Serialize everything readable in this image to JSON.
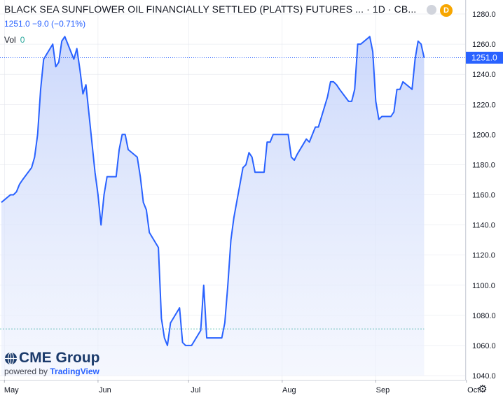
{
  "header": {
    "title": "BLACK SEA SUNFLOWER OIL FINANCIALLY SETTLED (PLATTS) FUTURES ... · 1D · CB...",
    "price_line": "1251.0  −9.0  (−0.71%)",
    "vol_label": "Vol",
    "vol_value": "0",
    "badge_letter": "D"
  },
  "branding": {
    "logo_text": "CME Group",
    "powered_by": "powered by",
    "tradingview": "TradingView"
  },
  "colors": {
    "line": "#2962ff",
    "fill_top": "#c6d4fb",
    "fill_bottom": "#eef2fd",
    "last_price_bg": "#2962ff",
    "grid": "#e0e3eb"
  },
  "icons": [
    "settings-gear-icon",
    "cme-globe-icon"
  ],
  "chart_data": {
    "type": "area",
    "x_axis_labels": [
      "May",
      "Jun",
      "Jul",
      "Aug",
      "Sep",
      "Oct"
    ],
    "y_axis_labels": [
      "1280.0",
      "1260.0",
      "1240.0",
      "1220.0",
      "1200.0",
      "1180.0",
      "1160.0",
      "1140.0",
      "1120.0",
      "1100.0",
      "1080.0",
      "1060.0",
      "1040.0"
    ],
    "ylim": [
      1040,
      1280
    ],
    "last_price": 1251.0,
    "last_price_label": "1251.0",
    "reference_level": 1071,
    "series": [
      {
        "values": [
          [
            "2021-04-30",
            1155
          ],
          [
            "2021-05-03",
            1160
          ],
          [
            "2021-05-04",
            1160
          ],
          [
            "2021-05-05",
            1162
          ],
          [
            "2021-05-06",
            1167
          ],
          [
            "2021-05-07",
            1170
          ],
          [
            "2021-05-10",
            1178
          ],
          [
            "2021-05-11",
            1185
          ],
          [
            "2021-05-12",
            1200
          ],
          [
            "2021-05-13",
            1230
          ],
          [
            "2021-05-14",
            1250
          ],
          [
            "2021-05-17",
            1260
          ],
          [
            "2021-05-18",
            1245
          ],
          [
            "2021-05-19",
            1248
          ],
          [
            "2021-05-20",
            1262
          ],
          [
            "2021-05-21",
            1265
          ],
          [
            "2021-05-24",
            1250
          ],
          [
            "2021-05-25",
            1257
          ],
          [
            "2021-05-26",
            1243
          ],
          [
            "2021-05-27",
            1227
          ],
          [
            "2021-05-28",
            1233
          ],
          [
            "2021-05-31",
            1175
          ],
          [
            "2021-06-01",
            1160
          ],
          [
            "2021-06-02",
            1140
          ],
          [
            "2021-06-03",
            1160
          ],
          [
            "2021-06-04",
            1172
          ],
          [
            "2021-06-07",
            1172
          ],
          [
            "2021-06-08",
            1190
          ],
          [
            "2021-06-09",
            1200
          ],
          [
            "2021-06-10",
            1200
          ],
          [
            "2021-06-11",
            1190
          ],
          [
            "2021-06-14",
            1185
          ],
          [
            "2021-06-15",
            1172
          ],
          [
            "2021-06-16",
            1155
          ],
          [
            "2021-06-17",
            1150
          ],
          [
            "2021-06-18",
            1135
          ],
          [
            "2021-06-21",
            1125
          ],
          [
            "2021-06-22",
            1078
          ],
          [
            "2021-06-23",
            1065
          ],
          [
            "2021-06-24",
            1060
          ],
          [
            "2021-06-25",
            1075
          ],
          [
            "2021-06-28",
            1085
          ],
          [
            "2021-06-29",
            1062
          ],
          [
            "2021-06-30",
            1060
          ],
          [
            "2021-07-01",
            1060
          ],
          [
            "2021-07-02",
            1060
          ],
          [
            "2021-07-05",
            1070
          ],
          [
            "2021-07-06",
            1100
          ],
          [
            "2021-07-07",
            1065
          ],
          [
            "2021-07-08",
            1065
          ],
          [
            "2021-07-09",
            1065
          ],
          [
            "2021-07-12",
            1065
          ],
          [
            "2021-07-13",
            1075
          ],
          [
            "2021-07-14",
            1100
          ],
          [
            "2021-07-15",
            1130
          ],
          [
            "2021-07-16",
            1145
          ],
          [
            "2021-07-19",
            1178
          ],
          [
            "2021-07-20",
            1180
          ],
          [
            "2021-07-21",
            1188
          ],
          [
            "2021-07-22",
            1185
          ],
          [
            "2021-07-23",
            1175
          ],
          [
            "2021-07-26",
            1175
          ],
          [
            "2021-07-27",
            1195
          ],
          [
            "2021-07-28",
            1195
          ],
          [
            "2021-07-29",
            1200
          ],
          [
            "2021-07-30",
            1200
          ],
          [
            "2021-08-02",
            1200
          ],
          [
            "2021-08-03",
            1200
          ],
          [
            "2021-08-04",
            1185
          ],
          [
            "2021-08-05",
            1183
          ],
          [
            "2021-08-06",
            1187
          ],
          [
            "2021-08-09",
            1197
          ],
          [
            "2021-08-10",
            1195
          ],
          [
            "2021-08-11",
            1200
          ],
          [
            "2021-08-12",
            1205
          ],
          [
            "2021-08-13",
            1205
          ],
          [
            "2021-08-16",
            1225
          ],
          [
            "2021-08-17",
            1235
          ],
          [
            "2021-08-18",
            1235
          ],
          [
            "2021-08-19",
            1233
          ],
          [
            "2021-08-20",
            1230
          ],
          [
            "2021-08-23",
            1222
          ],
          [
            "2021-08-24",
            1222
          ],
          [
            "2021-08-25",
            1230
          ],
          [
            "2021-08-26",
            1260
          ],
          [
            "2021-08-27",
            1260
          ],
          [
            "2021-08-30",
            1265
          ],
          [
            "2021-08-31",
            1255
          ],
          [
            "2021-09-01",
            1222
          ],
          [
            "2021-09-02",
            1210
          ],
          [
            "2021-09-03",
            1212
          ],
          [
            "2021-09-06",
            1212
          ],
          [
            "2021-09-07",
            1215
          ],
          [
            "2021-09-08",
            1230
          ],
          [
            "2021-09-09",
            1230
          ],
          [
            "2021-09-10",
            1235
          ],
          [
            "2021-09-13",
            1230
          ],
          [
            "2021-09-14",
            1250
          ],
          [
            "2021-09-15",
            1262
          ],
          [
            "2021-09-16",
            1260
          ],
          [
            "2021-09-17",
            1251
          ]
        ]
      }
    ]
  }
}
